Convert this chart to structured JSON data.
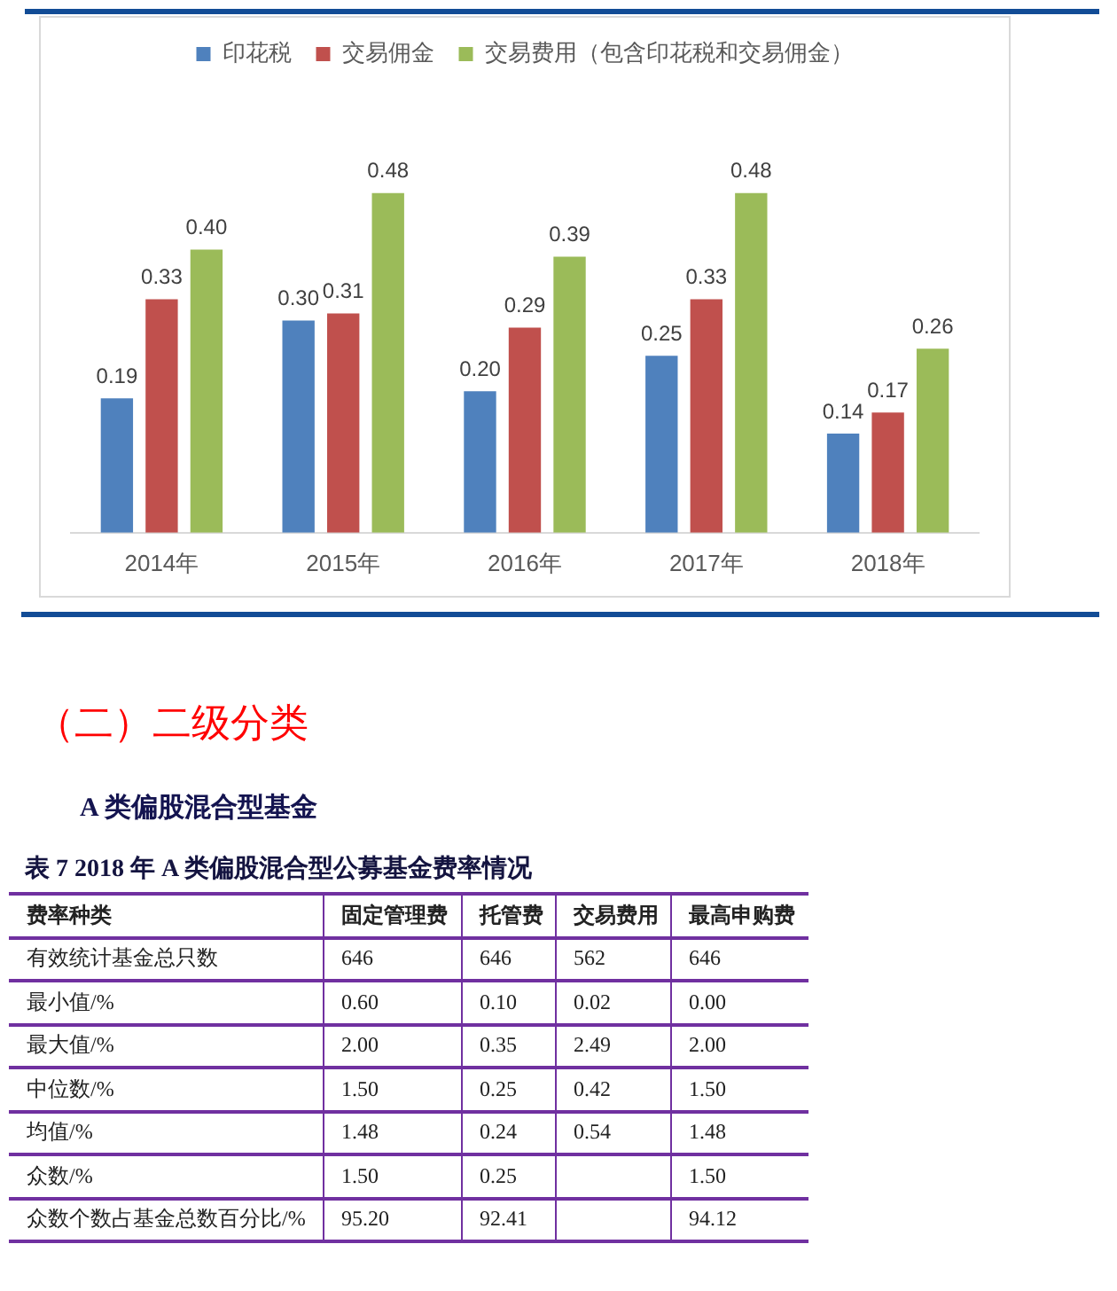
{
  "chart_data": [
    {
      "type": "bar",
      "legend": "top",
      "tick_labels": "x",
      "categories": [
        "2014年",
        "2015年",
        "2016年",
        "2017年",
        "2018年"
      ],
      "series": [
        {
          "name": "印花税",
          "color": "#4f81bd",
          "values": [
            0.19,
            0.3,
            0.2,
            0.25,
            0.14
          ],
          "value_labels": [
            "0.19",
            "0.30",
            "0.20",
            "0.25",
            "0.14"
          ]
        },
        {
          "name": "交易佣金",
          "color": "#c0504d",
          "values": [
            0.33,
            0.31,
            0.29,
            0.33,
            0.17
          ],
          "value_labels": [
            "0.33",
            "0.31",
            "0.29",
            "0.33",
            "0.17"
          ]
        },
        {
          "name": "交易费用（包含印花税和交易佣金）",
          "color": "#9bbb59",
          "values": [
            0.4,
            0.48,
            0.39,
            0.48,
            0.26
          ],
          "value_labels": [
            "0.40",
            "0.48",
            "0.39",
            "0.48",
            "0.26"
          ]
        }
      ]
    },
    {
      "type": "other",
      "title": "表 7 2018 年 A 类偏股混合型公募基金费率情况",
      "annotations": [
        "（二）二级分类",
        "A 类偏股混合型基金"
      ],
      "ylabel": "费率种类",
      "categories": [
        "固定管理费",
        "托管费",
        "交易费用",
        "最高申购费"
      ],
      "y_categories": [
        "有效统计基金总只数",
        "最小值/%",
        "最大值/%",
        "中位数/%",
        "均值/%",
        "众数/%",
        "众数个数占基金总数百分比/%"
      ],
      "cell_labels": [
        [
          "646",
          "646",
          "562",
          "646"
        ],
        [
          "0.60",
          "0.10",
          "0.02",
          "0.00"
        ],
        [
          "2.00",
          "0.35",
          "2.49",
          "2.00"
        ],
        [
          "1.50",
          "0.25",
          "0.42",
          "1.50"
        ],
        [
          "1.48",
          "0.24",
          "0.54",
          "1.48"
        ],
        [
          "1.50",
          "0.25",
          null,
          "1.50"
        ],
        [
          "95.20",
          "92.41",
          null,
          "94.12"
        ]
      ]
    }
  ]
}
